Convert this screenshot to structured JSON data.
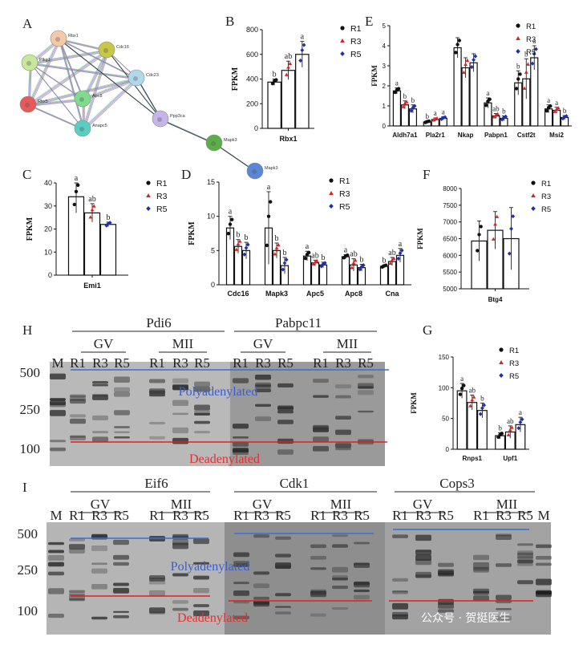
{
  "panels": {
    "A": "A",
    "B": "B",
    "C": "C",
    "D": "D",
    "E": "E",
    "F": "F",
    "G": "G",
    "H": "H",
    "I": "I"
  },
  "legend": [
    "R1",
    "R3",
    "R5"
  ],
  "fpkm": "FPKM",
  "colors": {
    "R1": "#111111",
    "R3": "#e02020",
    "R5": "#1f2fae"
  },
  "network": {
    "nodes": [
      {
        "id": "Rbx1",
        "color": "#f4c9a8"
      },
      {
        "id": "Cdc16",
        "color": "#c8c842"
      },
      {
        "id": "Pkg1",
        "color": "#c7e89a"
      },
      {
        "id": "Cdc23",
        "color": "#b0d8ea"
      },
      {
        "id": "Rbx5",
        "color": "#e85a5a"
      },
      {
        "id": "Apc8",
        "color": "#7edc8c"
      },
      {
        "id": "Anapc5",
        "color": "#58cfc2"
      },
      {
        "id": "Ppp3ca",
        "color": "#c7b4ea"
      },
      {
        "id": "Mapk3",
        "color": "#5cae4a"
      },
      {
        "id": "Mapk3b",
        "color": "#5a86d8"
      }
    ],
    "labels": {
      "Rbx1": "Rbx1",
      "Cdc16": "Cdc16",
      "Pkg1": "Plkg1",
      "Cdc23": "Cdc23",
      "Rbx5": "Rbx5",
      "Apc8": "Apc8",
      "Anapc5": "Anapc5",
      "Ppp3ca": "Ppp3ca",
      "Mapk3": "Mapk3",
      "Mapk3b": "Mapk3"
    }
  },
  "chart_data": [
    {
      "id": "B",
      "type": "bar",
      "title": "",
      "xlabel": "Rbx1",
      "ylabel": "FPKM",
      "ylim": [
        0,
        800
      ],
      "yticks": [
        "0",
        "200",
        "400",
        "600",
        "800"
      ],
      "categories": [
        "Rbx1"
      ],
      "series": [
        {
          "name": "R1",
          "values": [
            375
          ],
          "err": [
            25
          ],
          "letter": "b"
        },
        {
          "name": "R3",
          "values": [
            470
          ],
          "err": [
            75
          ],
          "letter": "ab"
        },
        {
          "name": "R5",
          "values": [
            600
          ],
          "err": [
            105
          ],
          "letter": "a"
        }
      ]
    },
    {
      "id": "C",
      "type": "bar",
      "title": "",
      "xlabel": "Emi1",
      "ylabel": "FPKM",
      "ylim": [
        0,
        40
      ],
      "yticks": [
        "0",
        "10",
        "20",
        "30",
        "40"
      ],
      "categories": [
        "Emi1"
      ],
      "series": [
        {
          "name": "R1",
          "values": [
            34
          ],
          "err": [
            7
          ],
          "letter": "a"
        },
        {
          "name": "R3",
          "values": [
            27
          ],
          "err": [
            4
          ],
          "letter": "ab"
        },
        {
          "name": "R5",
          "values": [
            22
          ],
          "err": [
            1
          ],
          "letter": "b"
        }
      ]
    },
    {
      "id": "D",
      "type": "bar",
      "title": "",
      "xlabel": "",
      "ylabel": "FPKM",
      "ylim": [
        0,
        15
      ],
      "yticks": [
        "0",
        "5",
        "10",
        "15"
      ],
      "categories": [
        "Cdc16",
        "Mapk3",
        "Apc5",
        "Apc8",
        "Cna"
      ],
      "series": [
        {
          "name": "R1",
          "values": [
            8.3,
            8.3,
            4.2,
            4.1,
            2.7
          ],
          "err": [
            1.7,
            5.3,
            0.7,
            0.3,
            0.2
          ],
          "letters": [
            "a",
            "a",
            "a",
            "a",
            "b"
          ]
        },
        {
          "name": "R3",
          "values": [
            5.6,
            5.0,
            3.2,
            2.9,
            3.4
          ],
          "err": [
            1.0,
            1.1,
            0.4,
            0.9,
            0.6
          ],
          "letters": [
            "b",
            "b",
            "ab",
            "ab",
            "ab"
          ]
        },
        {
          "name": "R5",
          "values": [
            5.0,
            2.8,
            2.9,
            2.5,
            4.3
          ],
          "err": [
            1.2,
            1.2,
            0.4,
            0.5,
            1.0
          ],
          "letters": [
            "b",
            "b",
            "b",
            "b",
            "a"
          ]
        }
      ]
    },
    {
      "id": "E",
      "type": "bar",
      "title": "",
      "xlabel": "",
      "ylabel": "FPKM",
      "ylim": [
        0,
        5
      ],
      "yticks": [
        "0",
        "1",
        "2",
        "3",
        "4",
        "5"
      ],
      "categories": [
        "Aldh7a1",
        "Pla2r1",
        "Nkap",
        "Pabpn1",
        "Cstf2t",
        "Msi2"
      ],
      "series": [
        {
          "name": "R1",
          "values": [
            1.75,
            0.2,
            3.9,
            1.15,
            2.15,
            0.85
          ],
          "err": [
            0.15,
            0.05,
            0.5,
            0.25,
            0.6,
            0.2
          ],
          "letters": [
            "a",
            "b",
            "",
            "a",
            "b",
            "a"
          ]
        },
        {
          "name": "R3",
          "values": [
            1.05,
            0.32,
            2.9,
            0.5,
            2.35,
            0.78
          ],
          "err": [
            0.2,
            0.08,
            0.5,
            0.12,
            1.0,
            0.15
          ],
          "letters": [
            "b",
            "a",
            "",
            "ab",
            "b",
            "a"
          ]
        },
        {
          "name": "R5",
          "values": [
            0.85,
            0.38,
            3.15,
            0.38,
            3.4,
            0.42
          ],
          "err": [
            0.2,
            0.08,
            0.45,
            0.12,
            0.6,
            0.1
          ],
          "letters": [
            "b",
            "a",
            "",
            "b",
            "a",
            "b"
          ]
        }
      ]
    },
    {
      "id": "F",
      "type": "bar",
      "title": "",
      "xlabel": "Btg4",
      "ylabel": "FPKM",
      "ylim": [
        5000,
        8000
      ],
      "yticks": [
        "5000",
        "5500",
        "6000",
        "6500",
        "7000",
        "7500",
        "8000"
      ],
      "categories": [
        "Btg4"
      ],
      "series": [
        {
          "name": "R1",
          "values": [
            6430
          ],
          "err": [
            600
          ],
          "letter": ""
        },
        {
          "name": "R3",
          "values": [
            6750
          ],
          "err": [
            560
          ],
          "letter": ""
        },
        {
          "name": "R5",
          "values": [
            6500
          ],
          "err": [
            930
          ],
          "letter": ""
        }
      ]
    },
    {
      "id": "G",
      "type": "bar",
      "title": "",
      "xlabel": "",
      "ylabel": "FPKM",
      "ylim": [
        0,
        150
      ],
      "yticks": [
        "0",
        "50",
        "100",
        "150"
      ],
      "categories": [
        "Rnps1",
        "Upf1"
      ],
      "series": [
        {
          "name": "R1",
          "values": [
            95,
            22
          ],
          "err": [
            12,
            5
          ],
          "letters": [
            "a",
            "b"
          ]
        },
        {
          "name": "R3",
          "values": [
            76,
            28
          ],
          "err": [
            12,
            10
          ],
          "letters": [
            "ab",
            "ab"
          ]
        },
        {
          "name": "R5",
          "values": [
            63,
            40
          ],
          "err": [
            12,
            12
          ],
          "letters": [
            "b",
            "a"
          ]
        }
      ]
    }
  ],
  "gelH": {
    "ladder": [
      "500",
      "250",
      "100"
    ],
    "genes": [
      {
        "name": "Pdi6"
      },
      {
        "name": "Pabpc11"
      }
    ],
    "stage_gv": "GV",
    "stage_mii": "MII",
    "lanes": [
      "M",
      "R1",
      "R3",
      "R5",
      "R1",
      "R3",
      "R5",
      "R1",
      "R3",
      "R5",
      "R1",
      "R3",
      "R5"
    ],
    "poly": "Polyadenylated",
    "dead": "Deadenylated"
  },
  "gelI": {
    "ladder": [
      "500",
      "250",
      "100"
    ],
    "genes": [
      {
        "name": "Eif6"
      },
      {
        "name": "Cdk1"
      },
      {
        "name": "Cops3"
      }
    ],
    "stage_gv": "GV",
    "stage_mii": "MII",
    "lanes": [
      "M",
      "R1",
      "R3",
      "R5",
      "R1",
      "R3",
      "R5",
      "R1",
      "R3",
      "R5",
      "R1",
      "R3",
      "R5",
      "R1",
      "R3",
      "R5",
      "R1",
      "R3",
      "R5",
      "M"
    ],
    "poly": "Polyadenylated",
    "dead": "Deadenylated"
  },
  "watermark": "公众号 · 贺挺医生"
}
